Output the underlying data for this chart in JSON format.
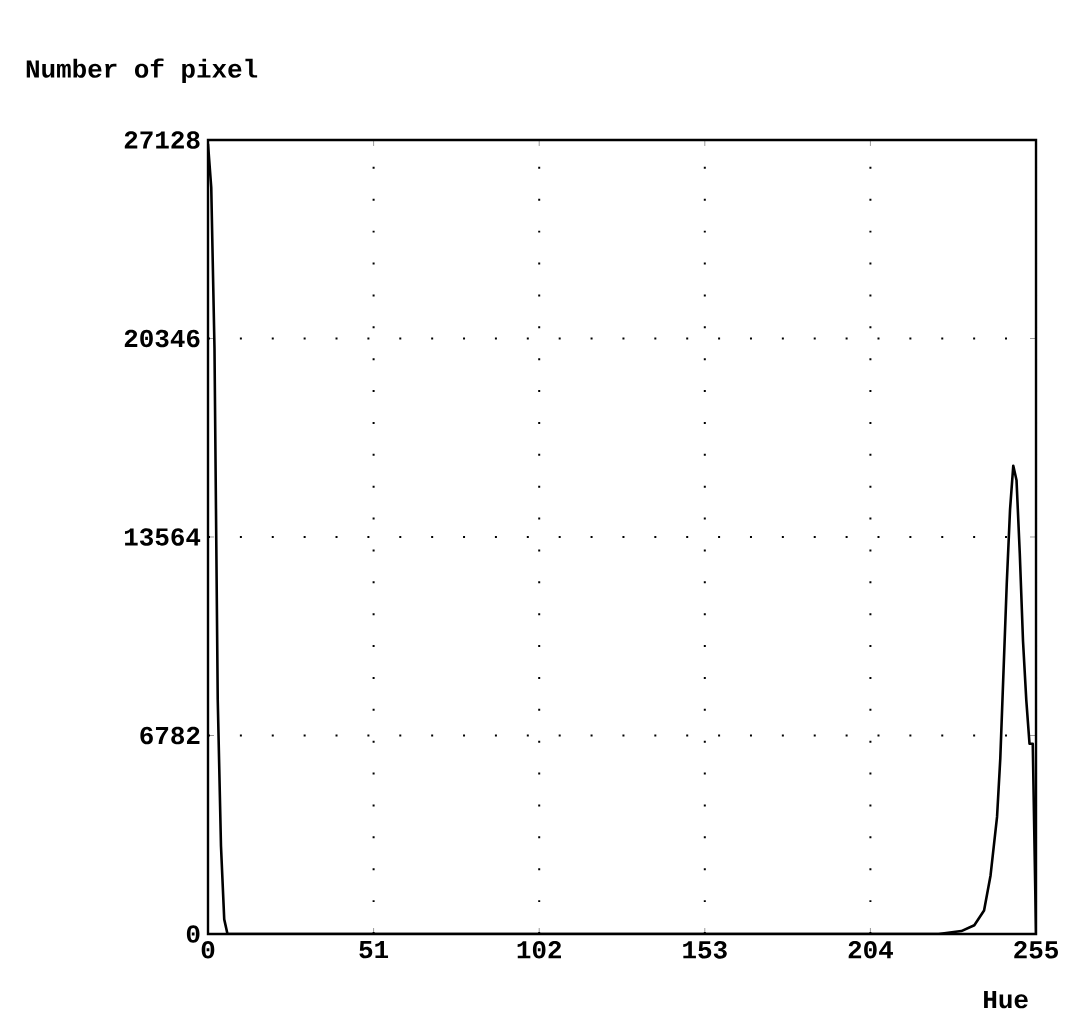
{
  "chart_data": {
    "type": "line",
    "ylabel": "Number of pixel",
    "xlabel": "Hue",
    "grid": true,
    "marker": "none",
    "line_style": "solid",
    "xlim": [
      0,
      255
    ],
    "ylim": [
      0,
      27128
    ],
    "xticks": [
      0,
      51,
      102,
      153,
      204,
      255
    ],
    "yticks": [
      0,
      6782,
      13564,
      20346,
      27128
    ],
    "series": [
      {
        "color": "#000000",
        "x": [
          0,
          1,
          2,
          3,
          4,
          5,
          6,
          50,
          100,
          150,
          200,
          225,
          232,
          236,
          239,
          241,
          243,
          244,
          245,
          246,
          247,
          248,
          249,
          250,
          251,
          252,
          253,
          254,
          255
        ],
        "values": [
          27000,
          25500,
          20000,
          8000,
          3000,
          500,
          0,
          0,
          0,
          0,
          0,
          0,
          100,
          300,
          800,
          2000,
          4000,
          6000,
          9000,
          12000,
          14500,
          16000,
          15500,
          13000,
          10000,
          8000,
          6500,
          6500,
          0
        ]
      }
    ]
  }
}
